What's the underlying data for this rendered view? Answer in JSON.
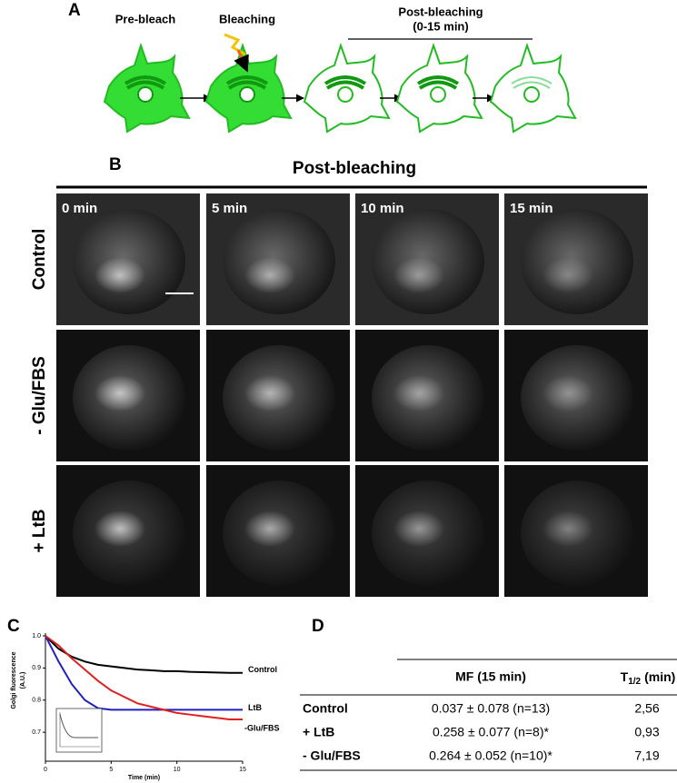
{
  "panel_labels": [
    "A",
    "B",
    "C",
    "D"
  ],
  "panel_a": {
    "steps": [
      "Pre-bleach",
      "Bleaching"
    ],
    "post_title": "Post-bleaching",
    "post_subtitle": "(0-15 min)"
  },
  "panel_b": {
    "title": "Post-bleaching",
    "times": [
      "0 min",
      "5 min",
      "10 min",
      "15 min"
    ],
    "rows": [
      "Control",
      "- Glu/FBS",
      "+ LtB"
    ]
  },
  "chart_data": {
    "type": "line",
    "ylabel_lines": [
      "Golgi fluorescence",
      "(A.U.)"
    ],
    "xlabel": "Time (min)",
    "x": [
      0,
      1,
      2,
      3,
      4,
      5,
      6,
      7,
      8,
      9,
      10,
      11,
      12,
      13,
      14,
      15
    ],
    "series": [
      {
        "name": "Control",
        "color": "#000000",
        "values": [
          1.0,
          0.96,
          0.935,
          0.92,
          0.91,
          0.905,
          0.9,
          0.895,
          0.893,
          0.89,
          0.89,
          0.888,
          0.887,
          0.886,
          0.885,
          0.885
        ]
      },
      {
        "name": "LtB",
        "color": "#2020c0",
        "values": [
          1.0,
          0.92,
          0.85,
          0.8,
          0.775,
          0.77,
          0.77,
          0.77,
          0.77,
          0.77,
          0.77,
          0.77,
          0.77,
          0.77,
          0.77,
          0.77
        ]
      },
      {
        "name": "-Glu/FBS",
        "color": "#e02020",
        "values": [
          1.0,
          0.97,
          0.93,
          0.895,
          0.86,
          0.83,
          0.81,
          0.79,
          0.78,
          0.77,
          0.76,
          0.755,
          0.75,
          0.745,
          0.74,
          0.74
        ]
      }
    ],
    "xlim": [
      0,
      15
    ],
    "xticks": [
      0,
      5,
      10,
      15
    ],
    "ylim": [
      0.61,
      1.0
    ],
    "yticks": [
      0.7,
      0.8,
      0.9,
      {
        "value": 1,
        "label": "1.0"
      }
    ]
  },
  "panel_d": {
    "header": {
      "mf": "MF (15 min)",
      "t_main": "T",
      "t_sub": "1/2",
      "t_unit": "(min)"
    },
    "rows": [
      [
        "Control",
        "0.037 ± 0.078 (n=13)",
        "2,56"
      ],
      [
        "+ LtB",
        "0.258 ± 0.077 (n=8)*",
        "0,93"
      ],
      [
        "- Glu/FBS",
        "0.264 ± 0.052 (n=10)*",
        "7,19"
      ]
    ]
  }
}
